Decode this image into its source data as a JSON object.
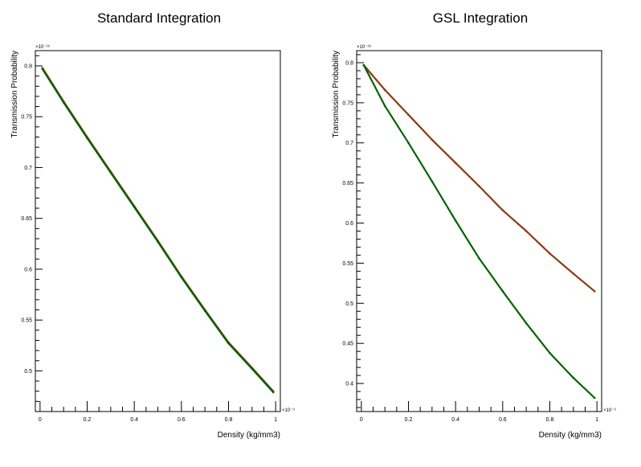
{
  "chart_data": [
    {
      "type": "line",
      "title": "Standard Integration",
      "xlabel": "Density (kg/mm3)",
      "ylabel": "Transmission Probability",
      "x_exponent_label": "×10⁻⁹",
      "y_exponent_label": "×10⁻¹⁸",
      "xlim": [
        -0.02,
        1.02
      ],
      "ylim": [
        0.46,
        0.815
      ],
      "x_ticks": [
        "0",
        "0.2",
        "0.4",
        "0.6",
        "0.8",
        "1"
      ],
      "y_ticks": [
        "0.5",
        "0.55",
        "0.6",
        "0.65",
        "0.7",
        "0.75",
        "0.8"
      ],
      "grid": false,
      "series": [
        {
          "color": "#8b3a0f",
          "x": [
            0.01,
            0.1,
            0.2,
            0.3,
            0.4,
            0.5,
            0.6,
            0.7,
            0.8,
            0.9,
            0.99
          ],
          "y": [
            0.798,
            0.765,
            0.73,
            0.696,
            0.662,
            0.628,
            0.593,
            0.56,
            0.528,
            0.503,
            0.48
          ]
        },
        {
          "color": "#006400",
          "x": [
            0.01,
            0.1,
            0.2,
            0.3,
            0.4,
            0.5,
            0.6,
            0.7,
            0.8,
            0.9,
            0.99
          ],
          "y": [
            0.797,
            0.764,
            0.729,
            0.695,
            0.661,
            0.627,
            0.592,
            0.559,
            0.527,
            0.502,
            0.479
          ]
        }
      ]
    },
    {
      "type": "line",
      "title": "GSL Integration",
      "xlabel": "Density (kg/mm3)",
      "ylabel": "Transmission Probability",
      "x_exponent_label": "×10⁻⁹",
      "y_exponent_label": "×10⁻¹⁸",
      "xlim": [
        -0.02,
        1.02
      ],
      "ylim": [
        0.365,
        0.815
      ],
      "x_ticks": [
        "0",
        "0.2",
        "0.4",
        "0.6",
        "0.8",
        "1"
      ],
      "y_ticks": [
        "0.4",
        "0.45",
        "0.5",
        "0.55",
        "0.6",
        "0.65",
        "0.7",
        "0.75",
        "0.8"
      ],
      "grid": false,
      "series": [
        {
          "color": "#8b3a0f",
          "x": [
            0.01,
            0.1,
            0.2,
            0.3,
            0.4,
            0.5,
            0.6,
            0.7,
            0.8,
            0.9,
            0.99
          ],
          "y": [
            0.797,
            0.766,
            0.735,
            0.704,
            0.675,
            0.646,
            0.616,
            0.59,
            0.562,
            0.537,
            0.515
          ]
        },
        {
          "color": "#006400",
          "x": [
            0.01,
            0.1,
            0.2,
            0.3,
            0.4,
            0.5,
            0.6,
            0.7,
            0.8,
            0.9,
            0.99
          ],
          "y": [
            0.797,
            0.746,
            0.7,
            0.652,
            0.603,
            0.556,
            0.515,
            0.475,
            0.438,
            0.407,
            0.382
          ]
        }
      ]
    }
  ]
}
